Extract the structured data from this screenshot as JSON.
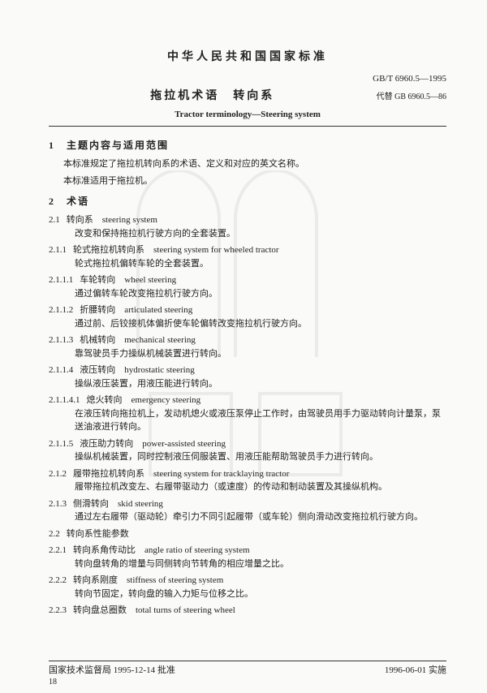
{
  "header": {
    "main_title": "中华人民共和国国家标准",
    "standard_code": "GB/T 6960.5—1995",
    "subtitle": "拖拉机术语　转向系",
    "replaces": "代替 GB 6960.5—86",
    "english_title": "Tractor terminology—Steering system"
  },
  "section1": {
    "heading": "1　主题内容与适用范围",
    "p1": "本标准规定了拖拉机转向系的术语、定义和对应的英文名称。",
    "p2": "本标准适用于拖拉机。"
  },
  "section2_heading": "2　术语",
  "entries": [
    {
      "num": "2.1",
      "term": "转向系　steering system",
      "def": "改变和保持拖拉机行驶方向的全套装置。"
    },
    {
      "num": "2.1.1",
      "term": "轮式拖拉机转向系　steering system for wheeled tractor",
      "def": "轮式拖拉机偏转车轮的全套装置。"
    },
    {
      "num": "2.1.1.1",
      "term": "车轮转向　wheel steering",
      "def": "通过偏转车轮改变拖拉机行驶方向。"
    },
    {
      "num": "2.1.1.2",
      "term": "折腰转向　articulated steering",
      "def": "通过前、后铰接机体偏折使车轮偏转改变拖拉机行驶方向。"
    },
    {
      "num": "2.1.1.3",
      "term": "机械转向　mechanical steering",
      "def": "靠驾驶员手力操纵机械装置进行转向。"
    },
    {
      "num": "2.1.1.4",
      "term": "液压转向　hydrostatic steering",
      "def": "操纵液压装置，用液压能进行转向。"
    },
    {
      "num": "2.1.1.4.1",
      "term": "熄火转向　emergency steering",
      "def": "在液压转向拖拉机上，发动机熄火或液压泵停止工作时，由驾驶员用手力驱动转向计量泵，泵送油液进行转向。"
    },
    {
      "num": "2.1.1.5",
      "term": "液压助力转向　power-assisted steering",
      "def": "操纵机械装置，同时控制液压伺服装置、用液压能帮助驾驶员手力进行转向。"
    },
    {
      "num": "2.1.2",
      "term": "履带拖拉机转向系　steering system for tracklaying tractor",
      "def": "履带拖拉机改变左、右履带驱动力（或速度）的传动和制动装置及其操纵机构。"
    },
    {
      "num": "2.1.3",
      "term": "侧滑转向　skid steering",
      "def": "通过左右履带（驱动轮）牵引力不同引起履带（或车轮）侧向滑动改变拖拉机行驶方向。"
    },
    {
      "num": "2.2",
      "term": "转向系性能参数",
      "def": ""
    },
    {
      "num": "2.2.1",
      "term": "转向系角传动比　angle ratio of steering system",
      "def": "转向盘转角的增量与同侧转向节转角的相应增量之比。"
    },
    {
      "num": "2.2.2",
      "term": "转向系刚度　stiffness of steering system",
      "def": "转向节固定，转向盘的输入力矩与位移之比。"
    },
    {
      "num": "2.2.3",
      "term": "转向盘总圈数　total turns of steering wheel",
      "def": ""
    }
  ],
  "footer": {
    "left": "国家技术监督局 1995-12-14 批准",
    "right": "1996-06-01 实施",
    "page_num": "18"
  },
  "styling": {
    "page_bg": "#fafaf8",
    "text_color": "#222",
    "watermark_opacity": 0.12
  }
}
